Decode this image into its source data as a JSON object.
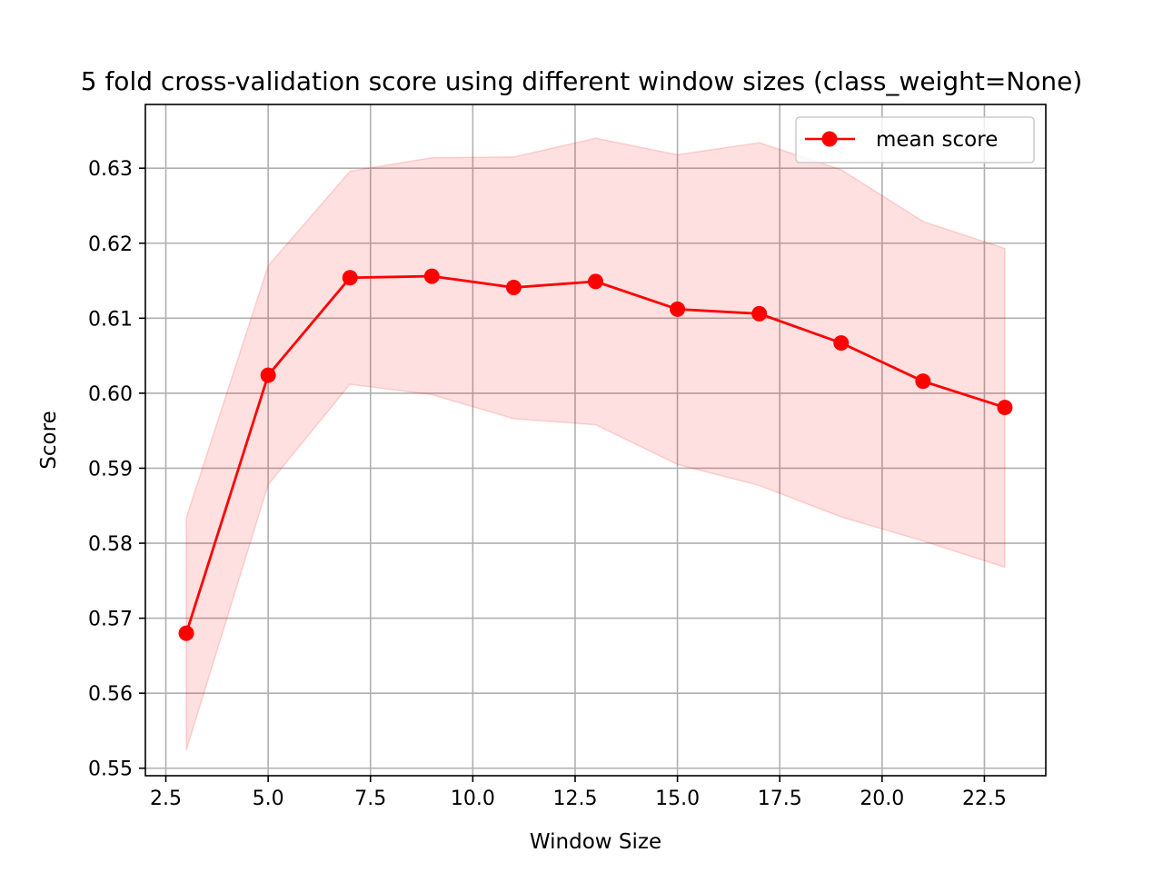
{
  "chart_data": {
    "type": "line",
    "title": "5 fold cross-validation score using different window sizes (class_weight=None)",
    "xlabel": "Window Size",
    "ylabel": "Score",
    "xlim": [
      2.0,
      24.0
    ],
    "ylim": [
      0.549,
      0.6385
    ],
    "xticks": [
      2.5,
      5.0,
      7.5,
      10.0,
      12.5,
      15.0,
      17.5,
      20.0,
      22.5
    ],
    "xtick_labels": [
      "2.5",
      "5.0",
      "7.5",
      "10.0",
      "12.5",
      "15.0",
      "17.5",
      "20.0",
      "22.5"
    ],
    "yticks": [
      0.55,
      0.56,
      0.57,
      0.58,
      0.59,
      0.6,
      0.61,
      0.62,
      0.63
    ],
    "ytick_labels": [
      "0.55",
      "0.56",
      "0.57",
      "0.58",
      "0.59",
      "0.60",
      "0.61",
      "0.62",
      "0.63"
    ],
    "grid": true,
    "legend_position": "top-right",
    "x": [
      3,
      5,
      7,
      9,
      11,
      13,
      15,
      17,
      19,
      21,
      23
    ],
    "series": [
      {
        "name": "mean score",
        "color": "#ff0000",
        "marker": "circle",
        "values": [
          0.568,
          0.6024,
          0.6154,
          0.6156,
          0.6141,
          0.6149,
          0.6112,
          0.6106,
          0.6067,
          0.6016,
          0.5981
        ]
      }
    ],
    "band": {
      "color": "#ff0000",
      "opacity": 0.12,
      "lower": [
        0.5524,
        0.5878,
        0.6012,
        0.5998,
        0.5966,
        0.5958,
        0.5905,
        0.5877,
        0.5835,
        0.5803,
        0.5768
      ],
      "upper": [
        0.5834,
        0.617,
        0.6296,
        0.6314,
        0.6315,
        0.634,
        0.6318,
        0.6334,
        0.6298,
        0.6229,
        0.6193
      ]
    }
  }
}
